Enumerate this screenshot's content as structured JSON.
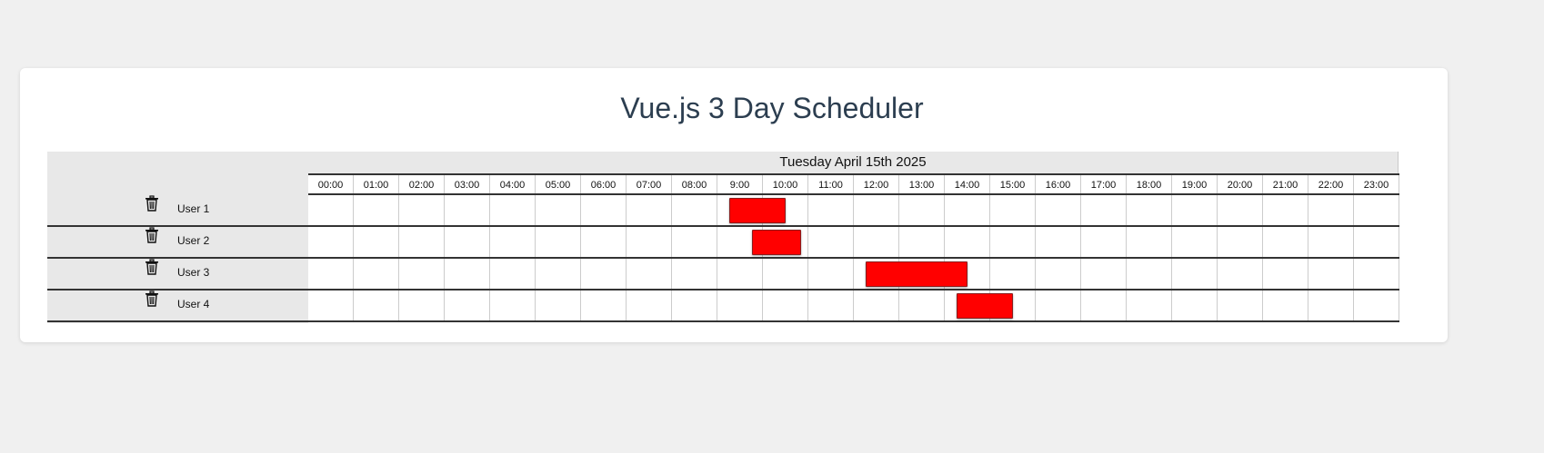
{
  "title": "Vue.js 3 Day Scheduler",
  "date_label": "Tuesday April 15th 2025",
  "hours": [
    "00:00",
    "01:00",
    "02:00",
    "03:00",
    "04:00",
    "05:00",
    "06:00",
    "07:00",
    "08:00",
    "9:00",
    "10:00",
    "11:00",
    "12:00",
    "13:00",
    "14:00",
    "15:00",
    "16:00",
    "17:00",
    "18:00",
    "19:00",
    "20:00",
    "21:00",
    "22:00",
    "23:00"
  ],
  "event_color": "#ff0000",
  "users": [
    {
      "name": "User 1",
      "event": {
        "start_hour": 9.25,
        "end_hour": 10.5
      }
    },
    {
      "name": "User 2",
      "event": {
        "start_hour": 9.75,
        "end_hour": 10.83
      }
    },
    {
      "name": "User 3",
      "event": {
        "start_hour": 12.25,
        "end_hour": 14.5
      }
    },
    {
      "name": "User 4",
      "event": {
        "start_hour": 14.25,
        "end_hour": 15.5
      }
    }
  ]
}
